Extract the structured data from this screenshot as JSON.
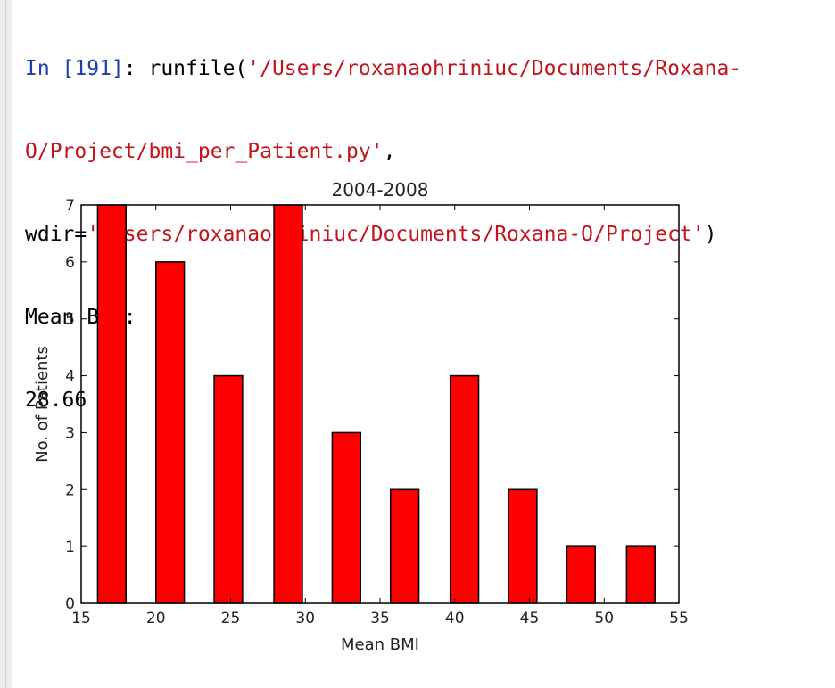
{
  "console": {
    "line1": {
      "prompt": "In [191]",
      "sep": ": ",
      "func": "runfile(",
      "arg1_part1": "'/Users/roxanaohriniuc/Documents/Roxana-"
    },
    "line2": {
      "arg1_part2": "O/Project/bmi_per_Patient.py'",
      "comma": ","
    },
    "line3": {
      "kw": "wdir=",
      "arg2": "'/Users/roxanaohriniuc/Documents/Roxana-O/Project'",
      "close": ")"
    },
    "output_label": "Mean BMI:",
    "output_value": "28.66"
  },
  "chart_data": {
    "type": "bar",
    "title": "2004-2008",
    "xlabel": "Mean BMI",
    "ylabel": "No. of Patients",
    "xlim": [
      15,
      55
    ],
    "ylim": [
      0,
      7
    ],
    "xticks": [
      "15",
      "20",
      "25",
      "30",
      "35",
      "40",
      "45",
      "50",
      "55"
    ],
    "yticks": [
      "0",
      "1",
      "2",
      "3",
      "4",
      "5",
      "6",
      "7"
    ],
    "bar_color": "#ff0000",
    "bar_edge": "#000000",
    "bars": [
      {
        "x0": 16.1,
        "x1": 18.0,
        "value": 7
      },
      {
        "x0": 20.0,
        "x1": 21.9,
        "value": 6
      },
      {
        "x0": 23.9,
        "x1": 25.8,
        "value": 4
      },
      {
        "x0": 27.9,
        "x1": 29.8,
        "value": 7
      },
      {
        "x0": 31.8,
        "x1": 33.7,
        "value": 3
      },
      {
        "x0": 35.7,
        "x1": 37.6,
        "value": 2
      },
      {
        "x0": 39.7,
        "x1": 41.6,
        "value": 4
      },
      {
        "x0": 43.6,
        "x1": 45.5,
        "value": 2
      },
      {
        "x0": 47.5,
        "x1": 49.4,
        "value": 1
      },
      {
        "x0": 51.5,
        "x1": 53.4,
        "value": 1
      }
    ]
  }
}
